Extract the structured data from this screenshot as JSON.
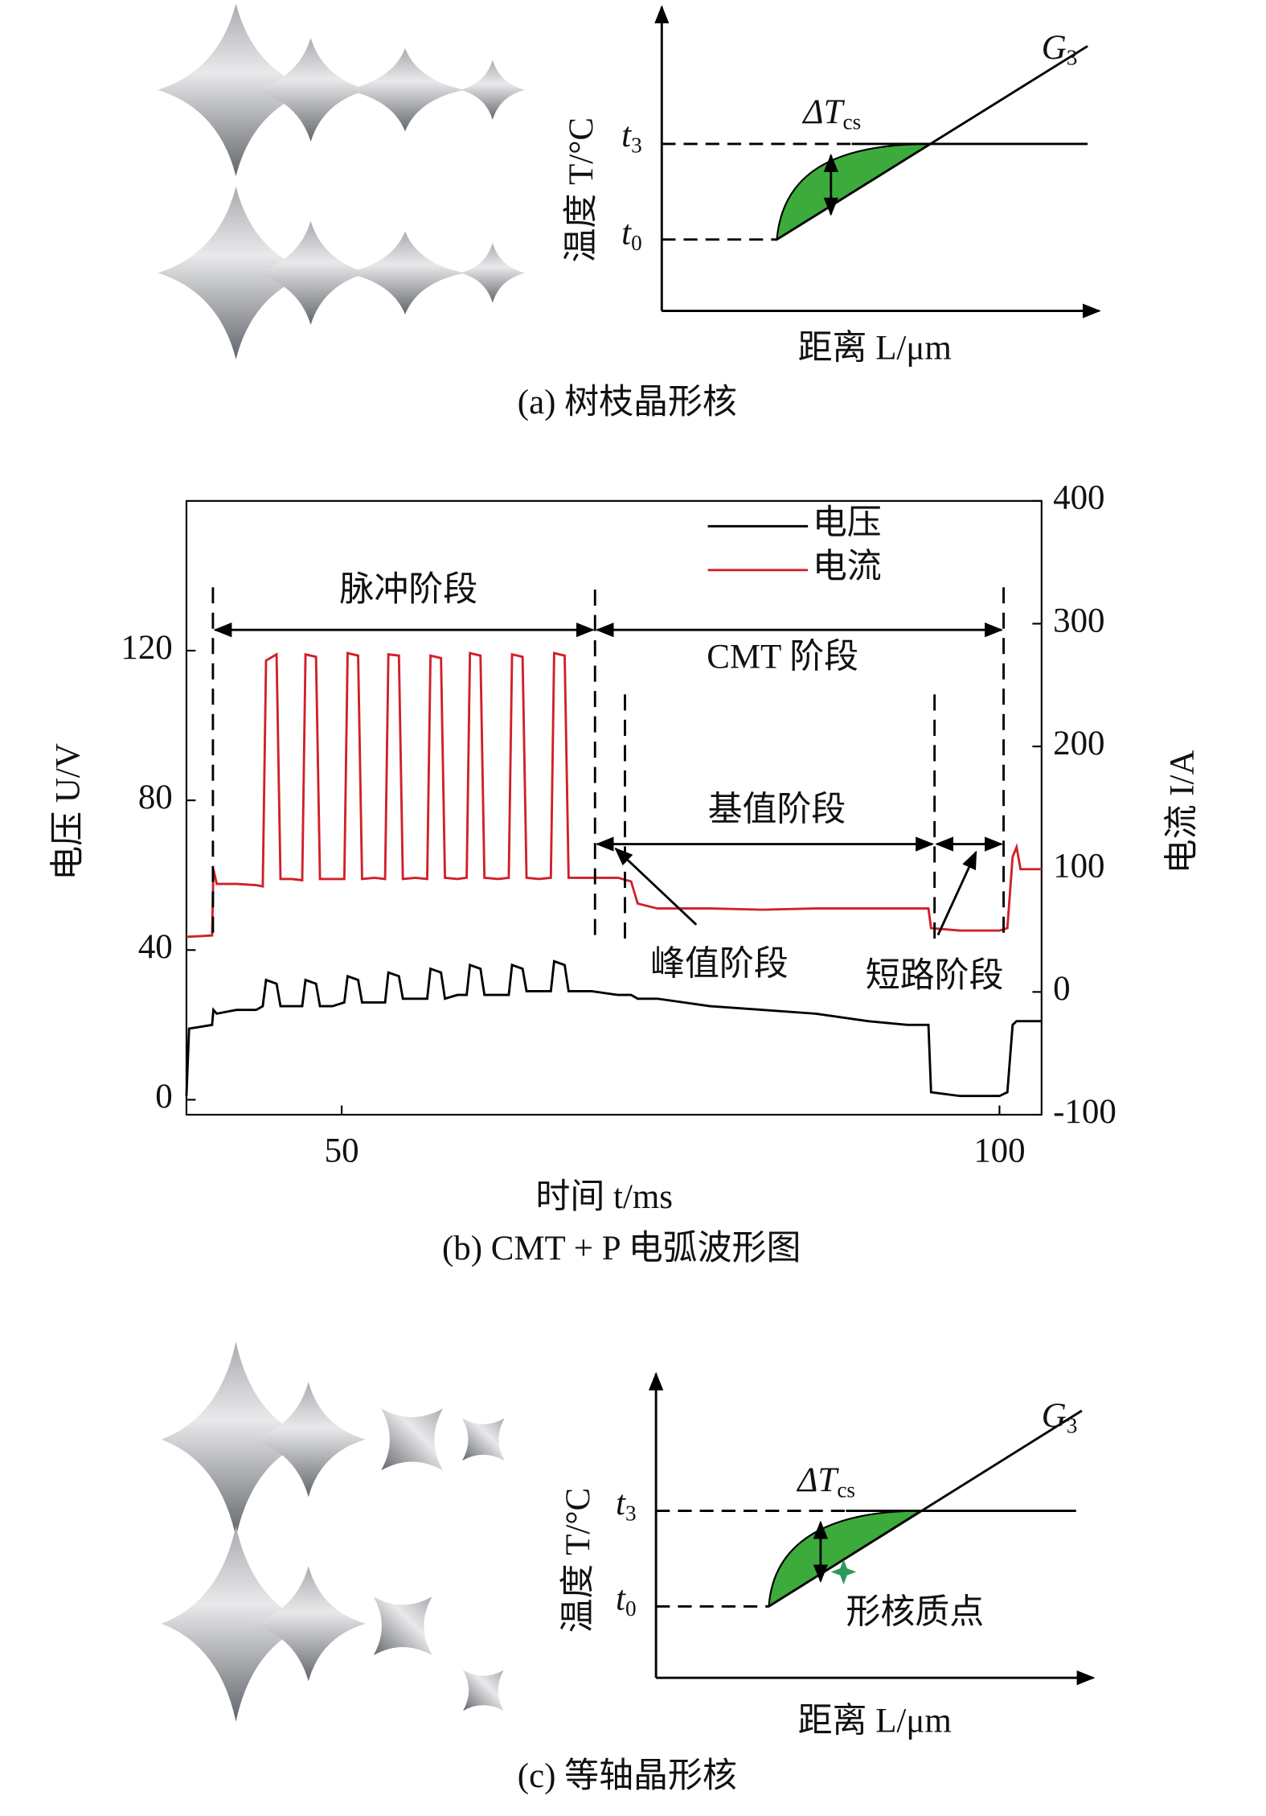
{
  "panel_a": {
    "caption": "(a) 树枝晶形核",
    "y_axis_label": "温度 T/°C",
    "x_axis_label": "距离 L/μm",
    "t3": {
      "text": "t",
      "sub": "3"
    },
    "t0": {
      "text": "t",
      "sub": "0"
    },
    "delta_t": {
      "text": "ΔT",
      "sub": "cs"
    },
    "gradient": {
      "text": "G",
      "sub": "3"
    }
  },
  "chart_data": {
    "type": "line",
    "caption": "(b) CMT + P 电弧波形图",
    "xlabel": "时间 t/ms",
    "ylabel": "电压 U/V",
    "y2label": "电流 I/A",
    "xlim": [
      38.2,
      103.2
    ],
    "xticks": [
      50,
      100
    ],
    "ylim": [
      -4,
      160
    ],
    "yticks": [
      0,
      40,
      80,
      120
    ],
    "y2lim": [
      -100,
      400
    ],
    "y2ticks": [
      -100,
      0,
      100,
      200,
      300,
      400
    ],
    "legend": "upper right",
    "annotations": [
      "脉冲阶段",
      "CMT 阶段",
      "基值阶段",
      "峰值阶段",
      "短路阶段"
    ],
    "x": [
      38.2,
      38.4,
      40.15,
      40.25,
      40.5,
      42.0,
      43.5,
      44.0,
      44.25,
      45.05,
      45.35,
      46.2,
      47.0,
      47.25,
      48.05,
      48.35,
      49.3,
      50.2,
      50.45,
      51.25,
      51.55,
      52.5,
      53.3,
      53.55,
      54.35,
      54.65,
      55.6,
      56.5,
      56.75,
      57.55,
      57.85,
      58.8,
      59.5,
      59.75,
      60.55,
      60.85,
      61.9,
      62.7,
      62.95,
      63.75,
      64.05,
      65.0,
      65.9,
      66.15,
      66.95,
      67.25,
      69.0,
      71.0,
      72.0,
      72.5,
      74.0,
      78.0,
      82.0,
      86.0,
      90.0,
      93.0,
      94.6,
      94.8,
      97.0,
      100.0,
      100.6,
      101.0,
      101.3,
      101.6,
      103.2
    ],
    "series": [
      {
        "name": "电压",
        "color": "#000000",
        "values": [
          1,
          19,
          20,
          24,
          23,
          24,
          24,
          25,
          32,
          31,
          25,
          25,
          25,
          32,
          31,
          25,
          25,
          26,
          33,
          32,
          26,
          26,
          26,
          34,
          33,
          27,
          27,
          27,
          35,
          34,
          27,
          28,
          28,
          36,
          35,
          28,
          28,
          28,
          36,
          35,
          29,
          29,
          29,
          37,
          36,
          29,
          29,
          28,
          28,
          27,
          27,
          25,
          24,
          23,
          21,
          20,
          20,
          2,
          1,
          1,
          2,
          20,
          21,
          21,
          21
        ]
      },
      {
        "name": "电流",
        "color": "#d0202a",
        "axis": "y2",
        "values": [
          45,
          45,
          46,
          100,
          88,
          88,
          87,
          86,
          270,
          275,
          92,
          92,
          91,
          275,
          273,
          92,
          92,
          92,
          276,
          274,
          92,
          93,
          92,
          275,
          274,
          92,
          93,
          92,
          274,
          272,
          93,
          92,
          93,
          276,
          274,
          93,
          92,
          93,
          275,
          273,
          93,
          92,
          93,
          276,
          274,
          93,
          93,
          93,
          90,
          72,
          68,
          68,
          67,
          68,
          68,
          68,
          68,
          52,
          50,
          50,
          52,
          110,
          118,
          100,
          100
        ]
      }
    ]
  },
  "panel_c": {
    "caption": "(c) 等轴晶形核",
    "y_axis_label": "温度 T/°C",
    "x_axis_label": "距离 L/μm",
    "t3": {
      "text": "t",
      "sub": "3"
    },
    "t0": {
      "text": "t",
      "sub": "0"
    },
    "delta_t": {
      "text": "ΔT",
      "sub": "cs"
    },
    "gradient": {
      "text": "G",
      "sub": "3"
    },
    "nucleus_label": "形核质点"
  }
}
